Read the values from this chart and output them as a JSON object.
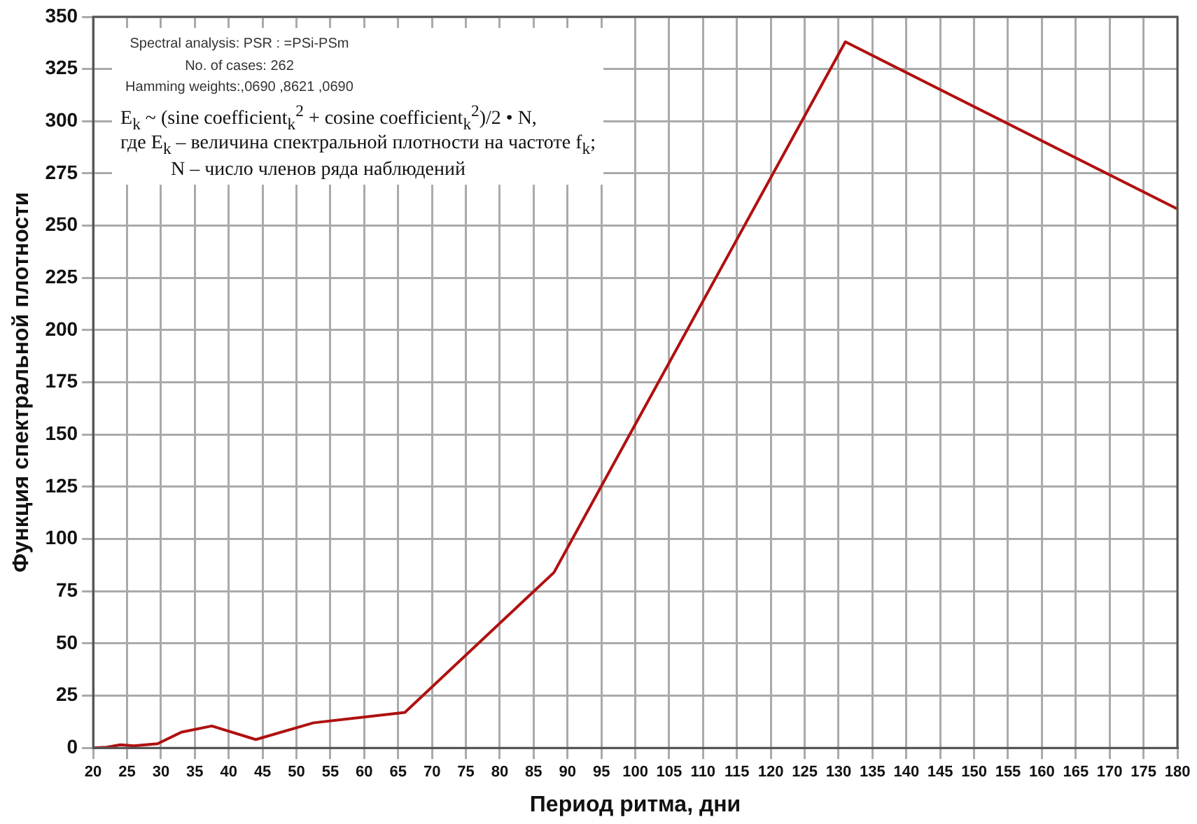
{
  "chart_data": {
    "type": "line",
    "xlabel": "Период ритма, дни",
    "ylabel": "Функция спектральной плотности",
    "x": [
      20,
      22,
      24,
      26,
      29.5,
      33,
      37.5,
      44,
      52.5,
      66,
      88,
      131,
      180
    ],
    "series": [
      {
        "color": "#b01010",
        "values": [
          0,
          0.3,
          1.5,
          1,
          2,
          7.5,
          10.5,
          4,
          12,
          17,
          84,
          338,
          258
        ]
      }
    ],
    "xlim": [
      20,
      180
    ],
    "xticks": [
      20,
      25,
      30,
      35,
      40,
      45,
      50,
      55,
      60,
      65,
      70,
      75,
      80,
      85,
      90,
      95,
      100,
      105,
      110,
      115,
      120,
      125,
      130,
      135,
      140,
      145,
      150,
      155,
      160,
      165,
      170,
      175,
      180
    ],
    "ylim": [
      0,
      350
    ],
    "yticks": [
      0,
      25,
      50,
      75,
      100,
      125,
      150,
      175,
      200,
      225,
      250,
      275,
      300,
      325,
      350
    ],
    "grid": true,
    "legend": false,
    "marker": "none",
    "line_style": "solid",
    "annotations": [
      "Spectral analysis: PSR     : =PSi-PSm",
      "No. of cases: 262",
      "Hamming weights:,0690 ,8621 ,0690",
      "E$_{k}$ ~ (sine coefficient$_{k}$$^{2}$ + cosine coefficient$_{k}$$^{2}$)/2 • N,",
      "где E$_{k}$ – величина спектральной плотности на частоте f$_{k}$;",
      "N – число членов ряда наблюдений"
    ]
  }
}
